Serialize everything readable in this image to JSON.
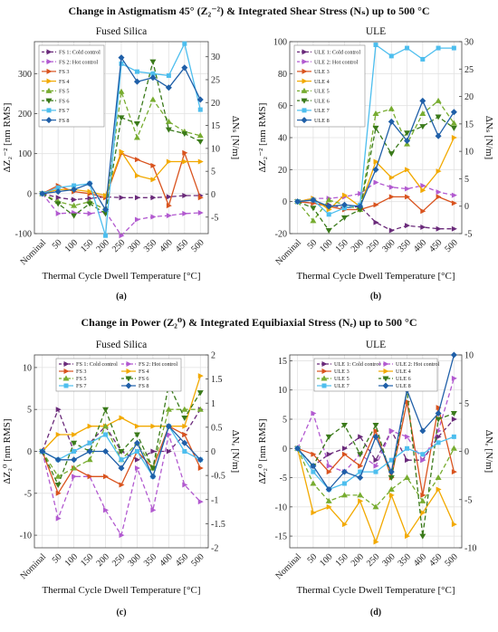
{
  "figure": {
    "title_top": "Change in Astigmatism 45° (Z₂⁻²) & Integrated Shear Stress (Nₛ) up to 500 °C",
    "title_bottom": "Change in Power (Z₂⁰) & Integrated Equibiaxial Stress (Nₑ) up to 500 °C"
  },
  "chart_data": [
    {
      "type": "line",
      "panel_label": "(a)",
      "title": "Fused Silica",
      "xlabel": "Thermal Cycle Dwell Temperature [°C]",
      "ylabel": "ΔZ₂⁻² [nm RMS]",
      "y2label": "ΔNₛ [N/m]",
      "categories": [
        "Nominal",
        "50",
        "100",
        "150",
        "200",
        "250",
        "300",
        "350",
        "400",
        "450",
        "500"
      ],
      "ylim": [
        -100,
        380
      ],
      "yticks": [
        -100,
        0,
        100,
        200,
        300
      ],
      "y2lim": [
        -8.6,
        33.3
      ],
      "y2ticks": [
        -5,
        0,
        5,
        10,
        15,
        20,
        25,
        30
      ],
      "grid": true,
      "legend_position": "top-left",
      "legend_columns": 1,
      "series": [
        {
          "name": "FS 1: Cold control",
          "color": "#6a2a7a",
          "dash": "5,3",
          "marker": "arrow",
          "axis": "left",
          "values": [
            0,
            -10,
            -15,
            -12,
            -8,
            -10,
            -10,
            -10,
            -8,
            -5,
            -5
          ]
        },
        {
          "name": "FS 2: Hot control",
          "color": "#b25ad0",
          "dash": "5,3",
          "marker": "arrow",
          "axis": "left",
          "values": [
            0,
            -50,
            -48,
            -50,
            -45,
            -105,
            -65,
            -58,
            -55,
            -50,
            -48
          ]
        },
        {
          "name": "FS 3",
          "color": "#d9531e",
          "dash": "",
          "marker": "arrow",
          "axis": "left",
          "values": [
            0,
            20,
            5,
            0,
            -10,
            100,
            85,
            70,
            -30,
            102,
            -10
          ]
        },
        {
          "name": "FS 4",
          "color": "#f2a900",
          "dash": "",
          "marker": "arrow",
          "axis": "left",
          "values": [
            0,
            10,
            10,
            5,
            -5,
            105,
            45,
            35,
            80,
            80,
            80
          ]
        },
        {
          "name": "FS 5",
          "color": "#77ac30",
          "dash": "5,3",
          "marker": "triangle-up",
          "axis": "left",
          "values": [
            0,
            -20,
            -30,
            -20,
            -40,
            255,
            140,
            235,
            180,
            155,
            145
          ]
        },
        {
          "name": "FS 6",
          "color": "#3a7a1a",
          "dash": "5,3",
          "marker": "triangle-down",
          "axis": "left",
          "values": [
            0,
            -25,
            -55,
            -25,
            -50,
            190,
            175,
            330,
            160,
            150,
            130
          ]
        },
        {
          "name": "FS 7",
          "color": "#4dbeee",
          "dash": "",
          "marker": "square",
          "axis": "left",
          "values": [
            0,
            15,
            20,
            25,
            -105,
            325,
            305,
            300,
            295,
            375,
            210
          ]
        },
        {
          "name": "FS 8",
          "color": "#1f5fa8",
          "dash": "",
          "marker": "diamond",
          "axis": "left",
          "values": [
            0,
            5,
            10,
            25,
            -40,
            340,
            280,
            290,
            265,
            315,
            235
          ]
        }
      ]
    },
    {
      "type": "line",
      "panel_label": "(b)",
      "title": "ULE",
      "xlabel": "Thermal Cycle Dwell Temperature [°C]",
      "ylabel": "ΔZ₂⁻² [nm RMS]",
      "y2label": "ΔNₛ [N/m]",
      "categories": [
        "Nominal",
        "50",
        "100",
        "150",
        "200",
        "250",
        "300",
        "350",
        "400",
        "450",
        "500"
      ],
      "ylim": [
        -20,
        100
      ],
      "yticks": [
        -20,
        0,
        20,
        40,
        60,
        80,
        100
      ],
      "y2lim": [
        -5,
        30
      ],
      "y2ticks": [
        -5,
        0,
        5,
        10,
        15,
        20,
        25,
        30
      ],
      "grid": true,
      "legend_position": "top-left",
      "legend_columns": 1,
      "series": [
        {
          "name": "ULE 1: Cold control",
          "color": "#6a2a7a",
          "dash": "5,3",
          "marker": "arrow",
          "axis": "left",
          "values": [
            0,
            -1,
            -2,
            -4,
            -3,
            -13,
            -18,
            -15,
            -16,
            -17,
            -17
          ]
        },
        {
          "name": "ULE 2: Hot control",
          "color": "#b25ad0",
          "dash": "5,3",
          "marker": "arrow",
          "axis": "left",
          "values": [
            0,
            2,
            2,
            3,
            5,
            12,
            9,
            8,
            10,
            6,
            4
          ]
        },
        {
          "name": "ULE 3",
          "color": "#d9531e",
          "dash": "",
          "marker": "arrow",
          "axis": "left",
          "values": [
            0,
            -1,
            -3,
            -5,
            -5,
            -2,
            3,
            3,
            -6,
            3,
            -1
          ]
        },
        {
          "name": "ULE 4",
          "color": "#f2a900",
          "dash": "",
          "marker": "arrow",
          "axis": "left",
          "values": [
            0,
            2,
            -5,
            4,
            -3,
            25,
            15,
            20,
            7,
            19,
            40
          ]
        },
        {
          "name": "ULE 5",
          "color": "#77ac30",
          "dash": "5,3",
          "marker": "triangle-up",
          "axis": "left",
          "values": [
            0,
            -12,
            1,
            -2,
            -5,
            55,
            58,
            36,
            55,
            63,
            49
          ]
        },
        {
          "name": "ULE 6",
          "color": "#3a7a1a",
          "dash": "5,3",
          "marker": "triangle-down",
          "axis": "left",
          "values": [
            0,
            -4,
            -18,
            -10,
            -5,
            46,
            30,
            43,
            47,
            53,
            46
          ]
        },
        {
          "name": "ULE 7",
          "color": "#4dbeee",
          "dash": "",
          "marker": "square",
          "axis": "left",
          "values": [
            0,
            1,
            -8,
            -4,
            -2,
            98,
            91,
            96,
            89,
            96,
            96
          ]
        },
        {
          "name": "ULE 8",
          "color": "#1f5fa8",
          "dash": "",
          "marker": "diamond",
          "axis": "left",
          "values": [
            0,
            1,
            -3,
            -2,
            -3,
            20,
            50,
            38,
            63,
            41,
            56
          ]
        }
      ]
    },
    {
      "type": "line",
      "panel_label": "(c)",
      "title": "Fused Silica",
      "xlabel": "Thermal Cycle Dwell Temperature [°C]",
      "ylabel": "ΔZ₂⁰ [nm RMS]",
      "y2label": "ΔNₑ [N/m]",
      "categories": [
        "Nominal",
        "50",
        "100",
        "150",
        "200",
        "250",
        "300",
        "350",
        "400",
        "450",
        "500"
      ],
      "ylim": [
        -11.5,
        11.5
      ],
      "yticks": [
        -10,
        -5,
        0,
        5,
        10
      ],
      "y2lim": [
        -2,
        2
      ],
      "y2ticks": [
        -2,
        -1.5,
        -1,
        -0.5,
        0,
        0.5,
        1,
        1.5,
        2
      ],
      "grid": true,
      "legend_position": "top",
      "legend_columns": 2,
      "series": [
        {
          "name": "FS 1: Cold control",
          "color": "#6a2a7a",
          "dash": "5,3",
          "marker": "arrow",
          "axis": "left",
          "values": [
            0,
            5,
            0,
            1,
            3,
            0,
            -1,
            0,
            0,
            2,
            5
          ]
        },
        {
          "name": "FS 2: Hot control",
          "color": "#b25ad0",
          "dash": "5,3",
          "marker": "arrow",
          "axis": "left",
          "values": [
            0,
            -8,
            -3,
            -3,
            -7,
            -10,
            -2,
            -7,
            2,
            -4,
            -6
          ]
        },
        {
          "name": "FS 3",
          "color": "#d9531e",
          "dash": "",
          "marker": "arrow",
          "axis": "left",
          "values": [
            0,
            -5,
            -2,
            -3,
            -3,
            -4,
            0,
            -2,
            3,
            2,
            -2
          ]
        },
        {
          "name": "FS 4",
          "color": "#f2a900",
          "dash": "",
          "marker": "arrow",
          "axis": "left",
          "values": [
            0,
            2,
            2,
            3,
            3,
            4,
            3,
            3,
            3,
            3,
            9
          ]
        },
        {
          "name": "FS 5",
          "color": "#77ac30",
          "dash": "5,3",
          "marker": "triangle-up",
          "axis": "left",
          "values": [
            0,
            -3,
            -2,
            -1,
            3,
            -1,
            1,
            -2,
            5,
            5,
            5
          ]
        },
        {
          "name": "FS 6",
          "color": "#3a7a1a",
          "dash": "5,3",
          "marker": "triangle-down",
          "axis": "left",
          "values": [
            0,
            -4,
            1,
            0,
            5,
            0,
            2,
            -2,
            8,
            4,
            7
          ]
        },
        {
          "name": "FS 7",
          "color": "#4dbeee",
          "dash": "",
          "marker": "square",
          "axis": "left",
          "values": [
            0,
            -1,
            0,
            1,
            2,
            -1,
            0,
            -3,
            3,
            0,
            -1
          ]
        },
        {
          "name": "FS 8",
          "color": "#1f5fa8",
          "dash": "",
          "marker": "diamond",
          "axis": "left",
          "values": [
            0,
            -1,
            -1,
            0,
            0,
            -2,
            1,
            -3,
            3,
            1,
            -1
          ]
        }
      ]
    },
    {
      "type": "line",
      "panel_label": "(d)",
      "title": "ULE",
      "xlabel": "Thermal Cycle Dwell Temperature [°C]",
      "ylabel": "ΔZ₂⁰ [nm RMS]",
      "y2label": "ΔNₑ [N/m]",
      "categories": [
        "Nominal",
        "50",
        "100",
        "150",
        "200",
        "250",
        "300",
        "350",
        "400",
        "450",
        "500"
      ],
      "ylim": [
        -17,
        16
      ],
      "yticks": [
        -15,
        -10,
        -5,
        0,
        5,
        10,
        15
      ],
      "y2lim": [
        -10,
        10
      ],
      "y2ticks": [
        -10,
        -5,
        0,
        5,
        10
      ],
      "grid": true,
      "legend_position": "top",
      "legend_columns": 2,
      "series": [
        {
          "name": "ULE 1: Cold control",
          "color": "#6a2a7a",
          "dash": "5,3",
          "marker": "arrow",
          "axis": "left",
          "values": [
            0,
            -3,
            -1,
            0,
            2,
            -2,
            3,
            -2,
            -2,
            2,
            5
          ]
        },
        {
          "name": "ULE 2: Hot control",
          "color": "#b25ad0",
          "dash": "5,3",
          "marker": "arrow",
          "axis": "left",
          "values": [
            0,
            6,
            -3,
            -4,
            -1,
            -3,
            3,
            2,
            -2,
            3,
            12
          ]
        },
        {
          "name": "ULE 3",
          "color": "#d9531e",
          "dash": "",
          "marker": "arrow",
          "axis": "left",
          "values": [
            0,
            -1,
            -4,
            -1,
            -3,
            3,
            -5,
            8,
            -8,
            7,
            -4
          ]
        },
        {
          "name": "ULE 4",
          "color": "#f2a900",
          "dash": "",
          "marker": "arrow",
          "axis": "left",
          "values": [
            0,
            -11,
            -10,
            -13,
            -9,
            -16,
            -8,
            -15,
            -11,
            -7,
            -13
          ]
        },
        {
          "name": "ULE 5",
          "color": "#77ac30",
          "dash": "5,3",
          "marker": "triangle-up",
          "axis": "left",
          "values": [
            0,
            -6,
            -9,
            -8,
            -8,
            -10,
            -7,
            -5,
            -9,
            -5,
            0
          ]
        },
        {
          "name": "ULE 6",
          "color": "#3a7a1a",
          "dash": "5,3",
          "marker": "triangle-down",
          "axis": "left",
          "values": [
            0,
            -3,
            2,
            4,
            -1,
            4,
            -5,
            10,
            -15,
            5,
            6
          ]
        },
        {
          "name": "ULE 7",
          "color": "#4dbeee",
          "dash": "",
          "marker": "square",
          "axis": "left",
          "values": [
            0,
            -4,
            -7,
            -6,
            -4,
            -4,
            -2,
            0,
            -1,
            1,
            2
          ]
        },
        {
          "name": "ULE 8",
          "color": "#1f5fa8",
          "dash": "",
          "marker": "diamond",
          "axis": "left",
          "values": [
            0,
            -3,
            -7,
            -4,
            -5,
            2,
            -4,
            10,
            3,
            6,
            16
          ]
        }
      ]
    }
  ]
}
